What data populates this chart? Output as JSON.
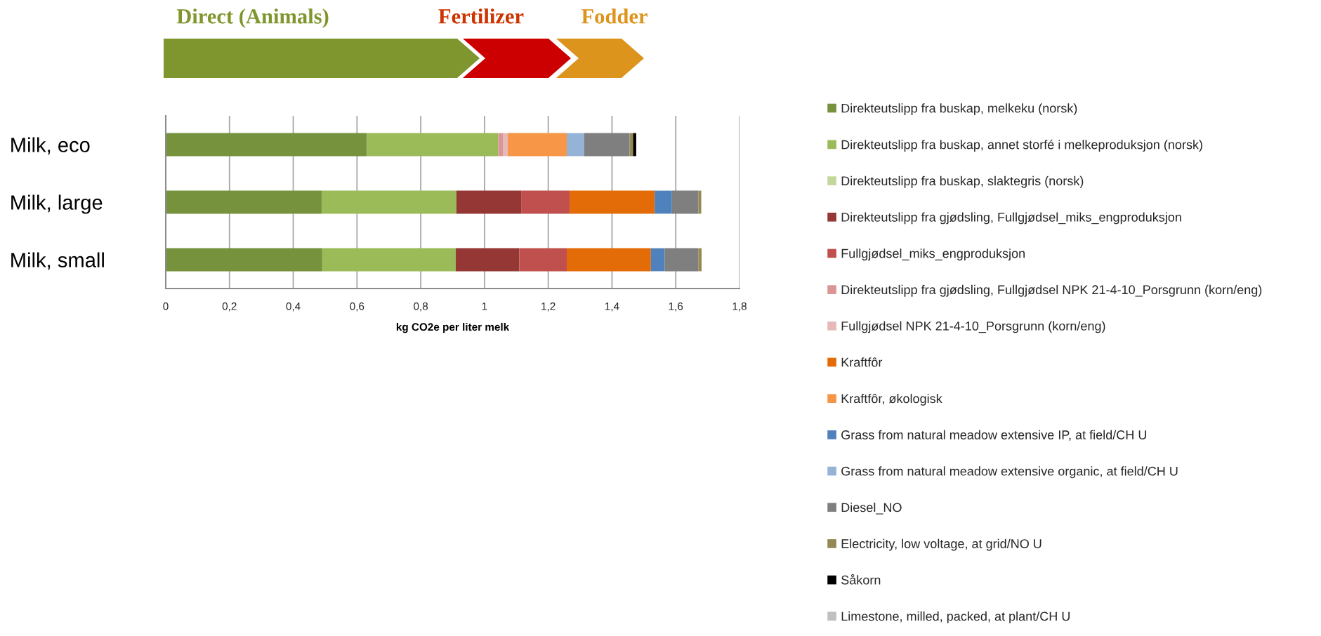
{
  "chart_data": {
    "type": "bar",
    "orientation": "horizontal",
    "stacked": true,
    "categories": [
      "Milk, eco",
      "Milk, large",
      "Milk, small"
    ],
    "xlabel": "kg CO2e per liter melk",
    "annotations": [
      "Direct (Animals)",
      "Fertilizer",
      "Fodder"
    ],
    "xlim": [
      0,
      1.8
    ],
    "xticks": [
      0,
      {
        "value": 0.2,
        "label": "0,2"
      },
      {
        "value": 0.4,
        "label": "0,4"
      },
      {
        "value": 0.6,
        "label": "0,6"
      },
      {
        "value": 0.8,
        "label": "0,8"
      },
      1,
      {
        "value": 1.2,
        "label": "1,2"
      },
      {
        "value": 1.4,
        "label": "1,4"
      },
      {
        "value": 1.6,
        "label": "1,6"
      },
      {
        "value": 1.8,
        "label": "1,8"
      }
    ],
    "grid": "x",
    "legend": "right",
    "series": [
      {
        "name": "Direkteutslipp fra buskap, melkeku (norsk)",
        "color": "#76923c",
        "values": [
          0.631,
          0.489,
          0.491
        ]
      },
      {
        "name": "Direkteutslipp fra buskap, annet storfé i melkeproduksjon (norsk)",
        "color": "#9bbb59",
        "values": [
          0.412,
          0.423,
          0.419
        ]
      },
      {
        "name": "Direkteutslipp fra buskap, slaktegris (norsk)",
        "color": "#c4d79b",
        "values": [
          null,
          null,
          null
        ]
      },
      {
        "name": "Direkteutslipp fra gjødsling, Fullgjødsel_miks_engproduksjon",
        "color": "#953735",
        "values": [
          null,
          0.203,
          0.199
        ]
      },
      {
        "name": "Fullgjødsel_miks_engproduksjon",
        "color": "#c0504d",
        "values": [
          null,
          0.152,
          0.149
        ]
      },
      {
        "name": "Direkteutslipp fra gjødsling, Fullgjødsel NPK 21-4-10_Porsgrunn (korn/eng)",
        "color": "#d99694",
        "values": [
          0.016,
          null,
          null
        ]
      },
      {
        "name": "Fullgjødsel NPK 21-4-10_Porsgrunn (korn/eng)",
        "color": "#e6b9b8",
        "values": [
          0.014,
          null,
          null
        ]
      },
      {
        "name": "Kraftfôr",
        "color": "#e36c09",
        "values": [
          null,
          0.267,
          0.264
        ]
      },
      {
        "name": "Kraftfôr, økologisk",
        "color": "#f79646",
        "values": [
          0.185,
          null,
          null
        ]
      },
      {
        "name": "Grass from natural meadow extensive IP, at field/CH U",
        "color": "#4f81bd",
        "values": [
          null,
          0.054,
          0.043
        ]
      },
      {
        "name": "Grass from natural meadow extensive organic, at field/CH U",
        "color": "#95b3d7",
        "values": [
          0.055,
          null,
          null
        ]
      },
      {
        "name": "Diesel_NO",
        "color": "#7f7f7f",
        "values": [
          0.142,
          0.083,
          0.106
        ]
      },
      {
        "name": "Electricity, low voltage, at grid/NO U",
        "color": "#938953",
        "values": [
          0.011,
          0.009,
          0.01
        ]
      },
      {
        "name": "Såkorn",
        "color": "#000000",
        "values": [
          0.01,
          null,
          null
        ]
      },
      {
        "name": "Limestone, milled, packed, at plant/CH U",
        "color": "#c0c0c0",
        "values": [
          null,
          null,
          null
        ]
      }
    ]
  }
}
